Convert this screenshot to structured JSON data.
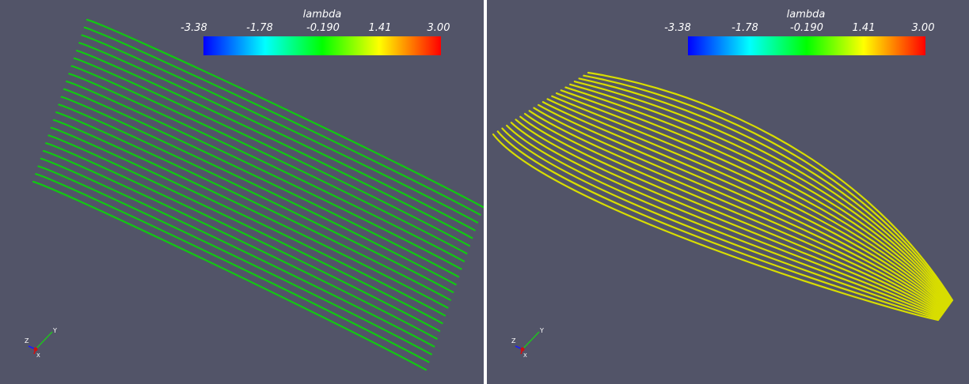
{
  "colorbar": {
    "title": "lambda",
    "ticks": [
      "-3.38",
      "-1.78",
      "-0.190",
      "1.41",
      "3.00"
    ],
    "gradient_colors": [
      "#0000ff",
      "#00ffff",
      "#00ff00",
      "#ffff00",
      "#ff0000"
    ]
  },
  "axes_triad": {
    "labels": [
      "Z",
      "Y",
      "X"
    ],
    "colors": {
      "x": "#d01010",
      "y": "#20c020",
      "z": "#1a1aff"
    }
  },
  "colors": {
    "background": "#525468",
    "left_streamlines": "#12c712",
    "right_streamlines": "#d8dd00"
  },
  "panels": [
    {
      "name": "left",
      "line_color_name": "green",
      "line_count": 22
    },
    {
      "name": "right",
      "line_color_name": "yellow",
      "line_count": 22
    }
  ]
}
